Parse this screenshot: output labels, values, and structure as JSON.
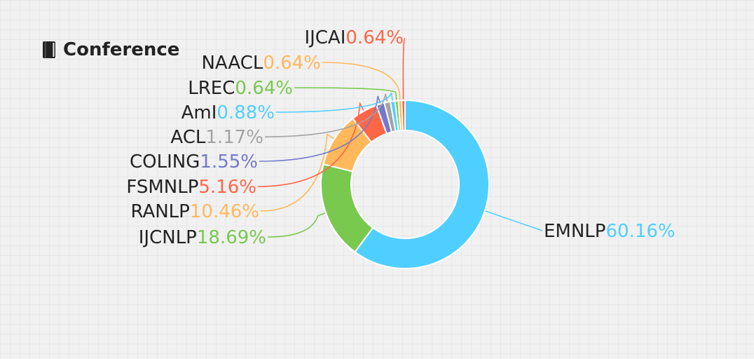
{
  "heading": {
    "icon": "book-icon",
    "title": "Conference"
  },
  "chart_data": {
    "type": "pie",
    "variant": "donut",
    "legend": "none",
    "slices": [
      {
        "label": "EMNLP",
        "value": 60.16,
        "percent_text": "60.16%",
        "color": "#4fcfff"
      },
      {
        "label": "IJCNLP",
        "value": 18.69,
        "percent_text": "18.69%",
        "color": "#78c94e"
      },
      {
        "label": "RANLP",
        "value": 10.46,
        "percent_text": "10.46%",
        "color": "#ffb85c"
      },
      {
        "label": "FSMNLP",
        "value": 5.16,
        "percent_text": "5.16%",
        "color": "#fe6648"
      },
      {
        "label": "COLING",
        "value": 1.55,
        "percent_text": "1.55%",
        "color": "#7379cd"
      },
      {
        "label": "ACL",
        "value": 1.17,
        "percent_text": "1.17%",
        "color": "#a3a3a3"
      },
      {
        "label": "AmI",
        "value": 0.88,
        "percent_text": "0.88%",
        "color": "#4fcfff"
      },
      {
        "label": "LREC",
        "value": 0.64,
        "percent_text": "0.64%",
        "color": "#78c94e"
      },
      {
        "label": "NAACL",
        "value": 0.64,
        "percent_text": "0.64%",
        "color": "#ffb85c"
      },
      {
        "label": "IJCAI",
        "value": 0.64,
        "percent_text": "0.64%",
        "color": "#fe6648"
      }
    ]
  }
}
